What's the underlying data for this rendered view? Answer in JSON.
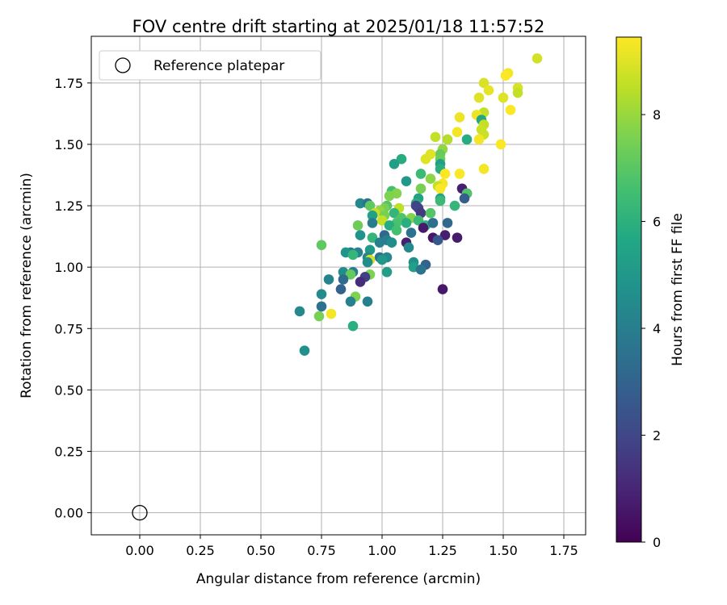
{
  "chart_data": {
    "type": "scatter",
    "title": "FOV centre drift starting at 2025/01/18 11:57:52",
    "xlabel": "Angular distance from reference (arcmin)",
    "ylabel": "Rotation from reference (arcmin)",
    "xlim": [
      -0.2,
      1.84
    ],
    "ylim": [
      -0.09,
      1.94
    ],
    "xticks": [
      "0.00",
      "0.25",
      "0.50",
      "0.75",
      "1.00",
      "1.25",
      "1.50",
      "1.75"
    ],
    "xtick_values": [
      0,
      0.25,
      0.5,
      0.75,
      1.0,
      1.25,
      1.5,
      1.75
    ],
    "yticks": [
      "0.00",
      "0.25",
      "0.50",
      "0.75",
      "1.00",
      "1.25",
      "1.50",
      "1.75"
    ],
    "ytick_values": [
      0,
      0.25,
      0.5,
      0.75,
      1.0,
      1.25,
      1.5,
      1.75
    ],
    "grid": true,
    "legend": {
      "position": "top-left",
      "entries": [
        "Reference platepar"
      ]
    },
    "reference_point": {
      "x": 0.0,
      "y": 0.0
    },
    "colorbar": {
      "label": "Hours from first FF file",
      "colormap": "viridis",
      "range": [
        0,
        9.45
      ],
      "ticks": [
        "0",
        "2",
        "4",
        "6",
        "8"
      ],
      "tick_values": [
        0,
        2,
        4,
        6,
        8
      ]
    },
    "points": [
      {
        "x": 1.64,
        "y": 1.85,
        "t": 8.8
      },
      {
        "x": 1.52,
        "y": 1.79,
        "t": 9.3
      },
      {
        "x": 1.51,
        "y": 1.78,
        "t": 9.4
      },
      {
        "x": 1.42,
        "y": 1.75,
        "t": 8.9
      },
      {
        "x": 1.56,
        "y": 1.73,
        "t": 8.9
      },
      {
        "x": 1.56,
        "y": 1.71,
        "t": 8.6
      },
      {
        "x": 1.44,
        "y": 1.72,
        "t": 9.1
      },
      {
        "x": 1.4,
        "y": 1.69,
        "t": 9.0
      },
      {
        "x": 1.5,
        "y": 1.69,
        "t": 9.0
      },
      {
        "x": 1.53,
        "y": 1.64,
        "t": 9.4
      },
      {
        "x": 1.42,
        "y": 1.63,
        "t": 8.6
      },
      {
        "x": 1.39,
        "y": 1.62,
        "t": 9.2
      },
      {
        "x": 1.32,
        "y": 1.61,
        "t": 9.2
      },
      {
        "x": 1.41,
        "y": 1.6,
        "t": 5.6
      },
      {
        "x": 1.42,
        "y": 1.58,
        "t": 8.6
      },
      {
        "x": 1.41,
        "y": 1.56,
        "t": 8.7
      },
      {
        "x": 1.31,
        "y": 1.55,
        "t": 9.3
      },
      {
        "x": 1.42,
        "y": 1.54,
        "t": 8.7
      },
      {
        "x": 1.4,
        "y": 1.52,
        "t": 9.3
      },
      {
        "x": 1.22,
        "y": 1.53,
        "t": 8.6
      },
      {
        "x": 1.27,
        "y": 1.52,
        "t": 8.4
      },
      {
        "x": 1.35,
        "y": 1.52,
        "t": 5.8
      },
      {
        "x": 1.49,
        "y": 1.5,
        "t": 9.4
      },
      {
        "x": 1.25,
        "y": 1.48,
        "t": 7.9
      },
      {
        "x": 1.24,
        "y": 1.46,
        "t": 7.2
      },
      {
        "x": 1.2,
        "y": 1.46,
        "t": 9.0
      },
      {
        "x": 1.18,
        "y": 1.44,
        "t": 9.0
      },
      {
        "x": 1.24,
        "y": 1.44,
        "t": 7.3
      },
      {
        "x": 1.08,
        "y": 1.44,
        "t": 5.8
      },
      {
        "x": 1.05,
        "y": 1.42,
        "t": 5.2
      },
      {
        "x": 1.24,
        "y": 1.42,
        "t": 5.3
      },
      {
        "x": 1.42,
        "y": 1.4,
        "t": 9.3
      },
      {
        "x": 1.24,
        "y": 1.4,
        "t": 5.9
      },
      {
        "x": 1.26,
        "y": 1.38,
        "t": 9.5
      },
      {
        "x": 1.32,
        "y": 1.38,
        "t": 9.4
      },
      {
        "x": 1.16,
        "y": 1.38,
        "t": 6.4
      },
      {
        "x": 1.2,
        "y": 1.36,
        "t": 7.8
      },
      {
        "x": 1.1,
        "y": 1.35,
        "t": 5.0
      },
      {
        "x": 1.25,
        "y": 1.34,
        "t": 9.3
      },
      {
        "x": 1.23,
        "y": 1.33,
        "t": 8.6
      },
      {
        "x": 1.24,
        "y": 1.32,
        "t": 9.4
      },
      {
        "x": 1.16,
        "y": 1.32,
        "t": 7.5
      },
      {
        "x": 1.33,
        "y": 1.32,
        "t": 0.8
      },
      {
        "x": 1.04,
        "y": 1.31,
        "t": 6.6
      },
      {
        "x": 1.35,
        "y": 1.3,
        "t": 1.0
      },
      {
        "x": 1.35,
        "y": 1.3,
        "t": 6.8
      },
      {
        "x": 1.06,
        "y": 1.3,
        "t": 7.7
      },
      {
        "x": 1.03,
        "y": 1.29,
        "t": 7.6
      },
      {
        "x": 1.15,
        "y": 1.28,
        "t": 5.4
      },
      {
        "x": 1.24,
        "y": 1.28,
        "t": 5.6
      },
      {
        "x": 1.34,
        "y": 1.28,
        "t": 2.8
      },
      {
        "x": 1.24,
        "y": 1.27,
        "t": 6.4
      },
      {
        "x": 1.14,
        "y": 1.26,
        "t": 5.9
      },
      {
        "x": 0.91,
        "y": 1.26,
        "t": 4.4
      },
      {
        "x": 0.94,
        "y": 1.26,
        "t": 3.6
      },
      {
        "x": 0.95,
        "y": 1.25,
        "t": 7.1
      },
      {
        "x": 1.02,
        "y": 1.25,
        "t": 6.9
      },
      {
        "x": 1.14,
        "y": 1.25,
        "t": 1.9
      },
      {
        "x": 1.3,
        "y": 1.25,
        "t": 6.2
      },
      {
        "x": 1.07,
        "y": 1.24,
        "t": 8.5
      },
      {
        "x": 1.15,
        "y": 1.24,
        "t": 1.9
      },
      {
        "x": 1.01,
        "y": 1.24,
        "t": 7.5
      },
      {
        "x": 0.99,
        "y": 1.23,
        "t": 7.9
      },
      {
        "x": 0.97,
        "y": 1.22,
        "t": 8.6
      },
      {
        "x": 1.05,
        "y": 1.22,
        "t": 6.2
      },
      {
        "x": 1.16,
        "y": 1.22,
        "t": 1.6
      },
      {
        "x": 1.2,
        "y": 1.22,
        "t": 6.9
      },
      {
        "x": 0.96,
        "y": 1.21,
        "t": 5.4
      },
      {
        "x": 1.01,
        "y": 1.21,
        "t": 7.5
      },
      {
        "x": 1.08,
        "y": 1.2,
        "t": 6.8
      },
      {
        "x": 1.12,
        "y": 1.2,
        "t": 7.7
      },
      {
        "x": 1.0,
        "y": 1.19,
        "t": 8.6
      },
      {
        "x": 1.15,
        "y": 1.19,
        "t": 6.4
      },
      {
        "x": 1.1,
        "y": 1.18,
        "t": 5.9
      },
      {
        "x": 0.96,
        "y": 1.18,
        "t": 3.9
      },
      {
        "x": 1.06,
        "y": 1.18,
        "t": 6.7
      },
      {
        "x": 1.18,
        "y": 1.17,
        "t": 6.1
      },
      {
        "x": 1.21,
        "y": 1.18,
        "t": 3.4
      },
      {
        "x": 1.27,
        "y": 1.18,
        "t": 3.2
      },
      {
        "x": 1.03,
        "y": 1.17,
        "t": 5.8
      },
      {
        "x": 0.9,
        "y": 1.17,
        "t": 7.3
      },
      {
        "x": 1.17,
        "y": 1.16,
        "t": 0.7
      },
      {
        "x": 1.06,
        "y": 1.15,
        "t": 6.6
      },
      {
        "x": 1.12,
        "y": 1.14,
        "t": 3.5
      },
      {
        "x": 1.01,
        "y": 1.13,
        "t": 3.2
      },
      {
        "x": 0.91,
        "y": 1.13,
        "t": 4.8
      },
      {
        "x": 1.26,
        "y": 1.13,
        "t": 0.8
      },
      {
        "x": 1.21,
        "y": 1.12,
        "t": 0.6
      },
      {
        "x": 1.23,
        "y": 1.11,
        "t": 2.6
      },
      {
        "x": 1.31,
        "y": 1.12,
        "t": 0.7
      },
      {
        "x": 0.96,
        "y": 1.12,
        "t": 6.2
      },
      {
        "x": 1.02,
        "y": 1.11,
        "t": 4.0
      },
      {
        "x": 0.99,
        "y": 1.1,
        "t": 4.1
      },
      {
        "x": 1.1,
        "y": 1.1,
        "t": 0.8
      },
      {
        "x": 1.04,
        "y": 1.1,
        "t": 4.6
      },
      {
        "x": 0.75,
        "y": 1.09,
        "t": 7.1
      },
      {
        "x": 1.11,
        "y": 1.08,
        "t": 4.4
      },
      {
        "x": 0.95,
        "y": 1.07,
        "t": 5.1
      },
      {
        "x": 0.9,
        "y": 1.06,
        "t": 4.2
      },
      {
        "x": 0.87,
        "y": 1.06,
        "t": 3.9
      },
      {
        "x": 0.85,
        "y": 1.06,
        "t": 4.9
      },
      {
        "x": 0.88,
        "y": 1.05,
        "t": 6.2
      },
      {
        "x": 0.94,
        "y": 1.04,
        "t": 4.3
      },
      {
        "x": 0.99,
        "y": 1.04,
        "t": 3.5
      },
      {
        "x": 1.02,
        "y": 1.04,
        "t": 4.4
      },
      {
        "x": 0.95,
        "y": 1.03,
        "t": 8.8
      },
      {
        "x": 1.0,
        "y": 1.03,
        "t": 5.0
      },
      {
        "x": 0.94,
        "y": 1.02,
        "t": 4.6
      },
      {
        "x": 1.13,
        "y": 1.02,
        "t": 4.7
      },
      {
        "x": 1.18,
        "y": 1.01,
        "t": 3.0
      },
      {
        "x": 1.13,
        "y": 1.0,
        "t": 5.3
      },
      {
        "x": 1.16,
        "y": 0.99,
        "t": 3.6
      },
      {
        "x": 1.02,
        "y": 0.98,
        "t": 5.2
      },
      {
        "x": 0.84,
        "y": 0.98,
        "t": 4.6
      },
      {
        "x": 0.88,
        "y": 0.98,
        "t": 4.0
      },
      {
        "x": 0.87,
        "y": 0.97,
        "t": 7.2
      },
      {
        "x": 0.95,
        "y": 0.97,
        "t": 7.6
      },
      {
        "x": 0.93,
        "y": 0.96,
        "t": 1.8
      },
      {
        "x": 0.84,
        "y": 0.95,
        "t": 3.3
      },
      {
        "x": 0.78,
        "y": 0.95,
        "t": 4.2
      },
      {
        "x": 0.91,
        "y": 0.94,
        "t": 1.2
      },
      {
        "x": 0.83,
        "y": 0.91,
        "t": 3.0
      },
      {
        "x": 1.25,
        "y": 0.91,
        "t": 0.6
      },
      {
        "x": 0.75,
        "y": 0.89,
        "t": 4.5
      },
      {
        "x": 0.89,
        "y": 0.88,
        "t": 7.6
      },
      {
        "x": 0.87,
        "y": 0.86,
        "t": 4.1
      },
      {
        "x": 0.94,
        "y": 0.86,
        "t": 4.1
      },
      {
        "x": 0.75,
        "y": 0.84,
        "t": 3.5
      },
      {
        "x": 0.66,
        "y": 0.82,
        "t": 4.4
      },
      {
        "x": 0.79,
        "y": 0.81,
        "t": 9.3
      },
      {
        "x": 0.74,
        "y": 0.8,
        "t": 7.5
      },
      {
        "x": 0.88,
        "y": 0.76,
        "t": 5.9
      },
      {
        "x": 0.68,
        "y": 0.66,
        "t": 4.7
      }
    ]
  }
}
